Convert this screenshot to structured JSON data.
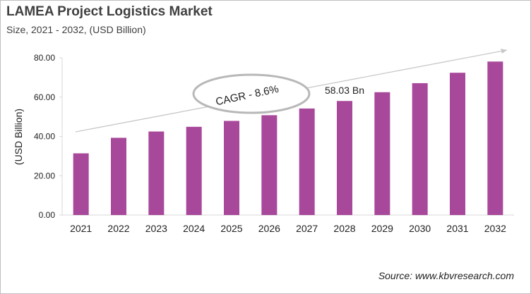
{
  "chart_data": {
    "type": "bar",
    "title": "LAMEA Project Logistics Market",
    "subtitle": "Size, 2021 - 2032, (USD Billion)",
    "xlabel": "",
    "ylabel": "(USD Billion)",
    "ylim": [
      0,
      80
    ],
    "yticks": [
      "0.00",
      "20.00",
      "40.00",
      "60.00",
      "80.00"
    ],
    "categories": [
      "2021",
      "2022",
      "2023",
      "2024",
      "2025",
      "2026",
      "2027",
      "2028",
      "2029",
      "2030",
      "2031",
      "2032"
    ],
    "values": [
      31.4,
      39.3,
      42.5,
      44.9,
      47.9,
      50.8,
      54.2,
      58.03,
      62.5,
      67.1,
      72.4,
      78.1
    ],
    "bar_color": "#a8489a",
    "data_label": {
      "category": "2028",
      "text": "58.03 Bn"
    },
    "annotation": "CAGR - 8.6%",
    "grid": false,
    "legend": "none"
  },
  "source": "Source: www.kbvresearch.com"
}
